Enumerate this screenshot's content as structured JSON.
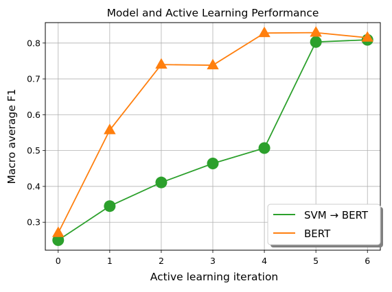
{
  "chart_data": {
    "type": "line",
    "title": "Model and Active Learning Performance",
    "xlabel": "Active learning iteration",
    "ylabel": "Macro average F1",
    "x": [
      0,
      1,
      2,
      3,
      4,
      5,
      6
    ],
    "xlim": [
      -0.25,
      6.25
    ],
    "ylim": [
      0.222,
      0.857
    ],
    "xticks": [
      0,
      1,
      2,
      3,
      4,
      5,
      6
    ],
    "yticks": [
      0.3,
      0.4,
      0.5,
      0.6,
      0.7,
      0.8
    ],
    "xtick_labels": [
      "0",
      "1",
      "2",
      "3",
      "4",
      "5",
      "6"
    ],
    "ytick_labels": [
      "0.3",
      "0.4",
      "0.5",
      "0.6",
      "0.7",
      "0.8"
    ],
    "grid": true,
    "legend_position": "bottom-right",
    "series": [
      {
        "name": "SVM → BERT",
        "values": [
          0.25,
          0.345,
          0.411,
          0.464,
          0.507,
          0.803,
          0.809
        ],
        "color": "#2ca02c",
        "marker": "circle"
      },
      {
        "name": "BERT",
        "values": [
          0.27,
          0.557,
          0.74,
          0.738,
          0.828,
          0.829,
          0.815
        ],
        "color": "#ff7f0e",
        "marker": "triangle"
      }
    ]
  }
}
